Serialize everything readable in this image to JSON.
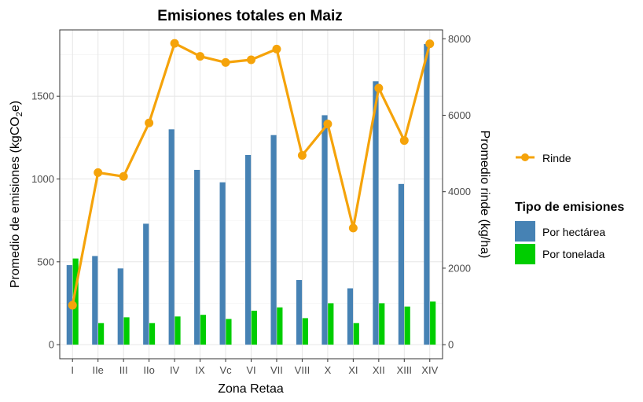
{
  "chart_data": {
    "type": "bar+line",
    "title": "Emisiones totales en Maiz",
    "xlabel": "Zona Retaa",
    "ylabel_left": "Promedio de emisiones (kgCO2e)",
    "ylabel_left_prefix": "Promedio de emisiones (kgCO",
    "ylabel_left_sub": "2",
    "ylabel_left_suffix": "e)",
    "ylabel_right": "Promedio rinde (kg/ha)",
    "categories": [
      "I",
      "IIe",
      "III",
      "IIo",
      "IV",
      "IX",
      "Vc",
      "VI",
      "VII",
      "VIII",
      "X",
      "XI",
      "XII",
      "XIII",
      "XIV"
    ],
    "y_left_lim": [
      -85,
      1900
    ],
    "y_left_ticks": [
      0,
      500,
      1000,
      1500
    ],
    "y_left_tick_labels": [
      "0",
      "500",
      "1000",
      "1500"
    ],
    "y_right_ticks": [
      0,
      2000,
      4000,
      6000,
      8000
    ],
    "y_right_tick_labels": [
      "0",
      "2000",
      "4000",
      "6000",
      "8000"
    ],
    "right_axis_scale": 0.2308,
    "grid": true,
    "series": [
      {
        "name": "Por hectárea",
        "type": "bar",
        "color": "#4682B4",
        "values": [
          480,
          535,
          460,
          730,
          1300,
          1055,
          980,
          1145,
          1265,
          390,
          1385,
          340,
          1590,
          970,
          1815
        ]
      },
      {
        "name": "Por tonelada",
        "type": "bar",
        "color": "#00CD00",
        "values": [
          520,
          130,
          165,
          130,
          170,
          180,
          155,
          205,
          225,
          160,
          250,
          130,
          250,
          230,
          260
        ]
      },
      {
        "name": "Rinde",
        "type": "line",
        "color": "#F5A30A",
        "axis": "right",
        "values": [
          1030,
          4500,
          4400,
          5800,
          7880,
          7540,
          7380,
          7450,
          7730,
          4950,
          5770,
          3050,
          6710,
          5340,
          7870
        ]
      }
    ],
    "legend": {
      "line_label": "Rinde",
      "fill_title": "Tipo de emisiones",
      "fill_items": [
        "Por hectárea",
        "Por tonelada"
      ],
      "placement": "right"
    }
  }
}
